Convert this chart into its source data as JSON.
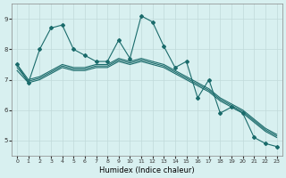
{
  "xlabel": "Humidex (Indice chaleur)",
  "ylabel": "",
  "xlim": [
    -0.5,
    23.5
  ],
  "ylim": [
    4.5,
    9.5
  ],
  "xticks": [
    0,
    1,
    2,
    3,
    4,
    5,
    6,
    7,
    8,
    9,
    10,
    11,
    12,
    13,
    14,
    15,
    16,
    17,
    18,
    19,
    20,
    21,
    22,
    23
  ],
  "yticks": [
    5,
    6,
    7,
    8,
    9
  ],
  "bg_color": "#d8f0f0",
  "line_color": "#1a6b6b",
  "grid_color": "#c0dada",
  "series": {
    "main": {
      "x": [
        0,
        1,
        2,
        3,
        4,
        5,
        6,
        7,
        8,
        9,
        10,
        11,
        12,
        13,
        14,
        15,
        16,
        17,
        18,
        19,
        20,
        21,
        22,
        23
      ],
      "y": [
        7.5,
        6.9,
        8.0,
        8.7,
        8.8,
        8.0,
        7.8,
        7.6,
        7.6,
        8.3,
        7.7,
        9.1,
        8.9,
        8.1,
        7.4,
        7.6,
        6.4,
        7.0,
        5.9,
        6.1,
        5.9,
        5.1,
        4.9,
        4.8
      ]
    },
    "trend1": {
      "x": [
        0,
        1,
        2,
        3,
        4,
        5,
        6,
        7,
        8,
        9,
        10,
        11,
        12,
        13,
        14,
        15,
        16,
        17,
        18,
        19,
        20,
        21,
        22,
        23
      ],
      "y": [
        7.5,
        7.0,
        7.1,
        7.3,
        7.5,
        7.4,
        7.4,
        7.5,
        7.5,
        7.7,
        7.6,
        7.7,
        7.6,
        7.5,
        7.3,
        7.1,
        6.9,
        6.7,
        6.4,
        6.2,
        6.0,
        5.7,
        5.4,
        5.2
      ]
    },
    "trend2": {
      "x": [
        0,
        1,
        2,
        3,
        4,
        5,
        6,
        7,
        8,
        9,
        10,
        11,
        12,
        13,
        14,
        15,
        16,
        17,
        18,
        19,
        20,
        21,
        22,
        23
      ],
      "y": [
        7.4,
        6.95,
        7.05,
        7.25,
        7.45,
        7.35,
        7.35,
        7.45,
        7.45,
        7.65,
        7.55,
        7.65,
        7.55,
        7.45,
        7.25,
        7.05,
        6.85,
        6.65,
        6.35,
        6.15,
        5.95,
        5.65,
        5.35,
        5.15
      ]
    },
    "trend3": {
      "x": [
        0,
        1,
        2,
        3,
        4,
        5,
        6,
        7,
        8,
        9,
        10,
        11,
        12,
        13,
        14,
        15,
        16,
        17,
        18,
        19,
        20,
        21,
        22,
        23
      ],
      "y": [
        7.3,
        6.9,
        7.0,
        7.2,
        7.4,
        7.3,
        7.3,
        7.4,
        7.4,
        7.6,
        7.5,
        7.6,
        7.5,
        7.4,
        7.2,
        7.0,
        6.8,
        6.6,
        6.3,
        6.1,
        5.9,
        5.6,
        5.3,
        5.1
      ]
    }
  }
}
